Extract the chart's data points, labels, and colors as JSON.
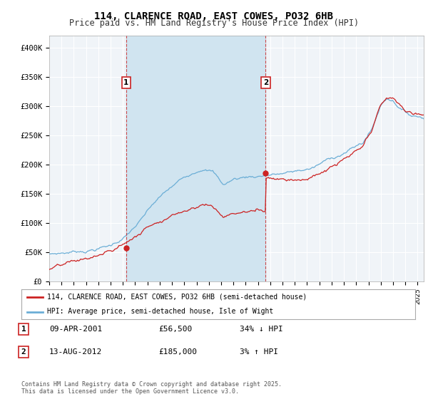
{
  "title": "114, CLARENCE ROAD, EAST COWES, PO32 6HB",
  "subtitle": "Price paid vs. HM Land Registry's House Price Index (HPI)",
  "title_fontsize": 10,
  "subtitle_fontsize": 8.5,
  "background_color": "#ffffff",
  "plot_bg_color": "#f0f4f8",
  "shade_color": "#d0e4f0",
  "grid_color": "#ffffff",
  "ylabel_ticks": [
    "£0",
    "£50K",
    "£100K",
    "£150K",
    "£200K",
    "£250K",
    "£300K",
    "£350K",
    "£400K"
  ],
  "ytick_values": [
    0,
    50000,
    100000,
    150000,
    200000,
    250000,
    300000,
    350000,
    400000
  ],
  "ylim": [
    0,
    420000
  ],
  "hpi_color": "#6baed6",
  "price_color": "#cc2222",
  "transaction1_x": 2001.27,
  "transaction1_y": 56500,
  "transaction2_x": 2012.62,
  "transaction2_y": 185000,
  "legend_label1": "114, CLARENCE ROAD, EAST COWES, PO32 6HB (semi-detached house)",
  "legend_label2": "HPI: Average price, semi-detached house, Isle of Wight",
  "table_row1": [
    "1",
    "09-APR-2001",
    "£56,500",
    "34% ↓ HPI"
  ],
  "table_row2": [
    "2",
    "13-AUG-2012",
    "£185,000",
    "3% ↑ HPI"
  ],
  "footer_text": "Contains HM Land Registry data © Crown copyright and database right 2025.\nThis data is licensed under the Open Government Licence v3.0.",
  "xmin": 1995.0,
  "xmax": 2025.5
}
